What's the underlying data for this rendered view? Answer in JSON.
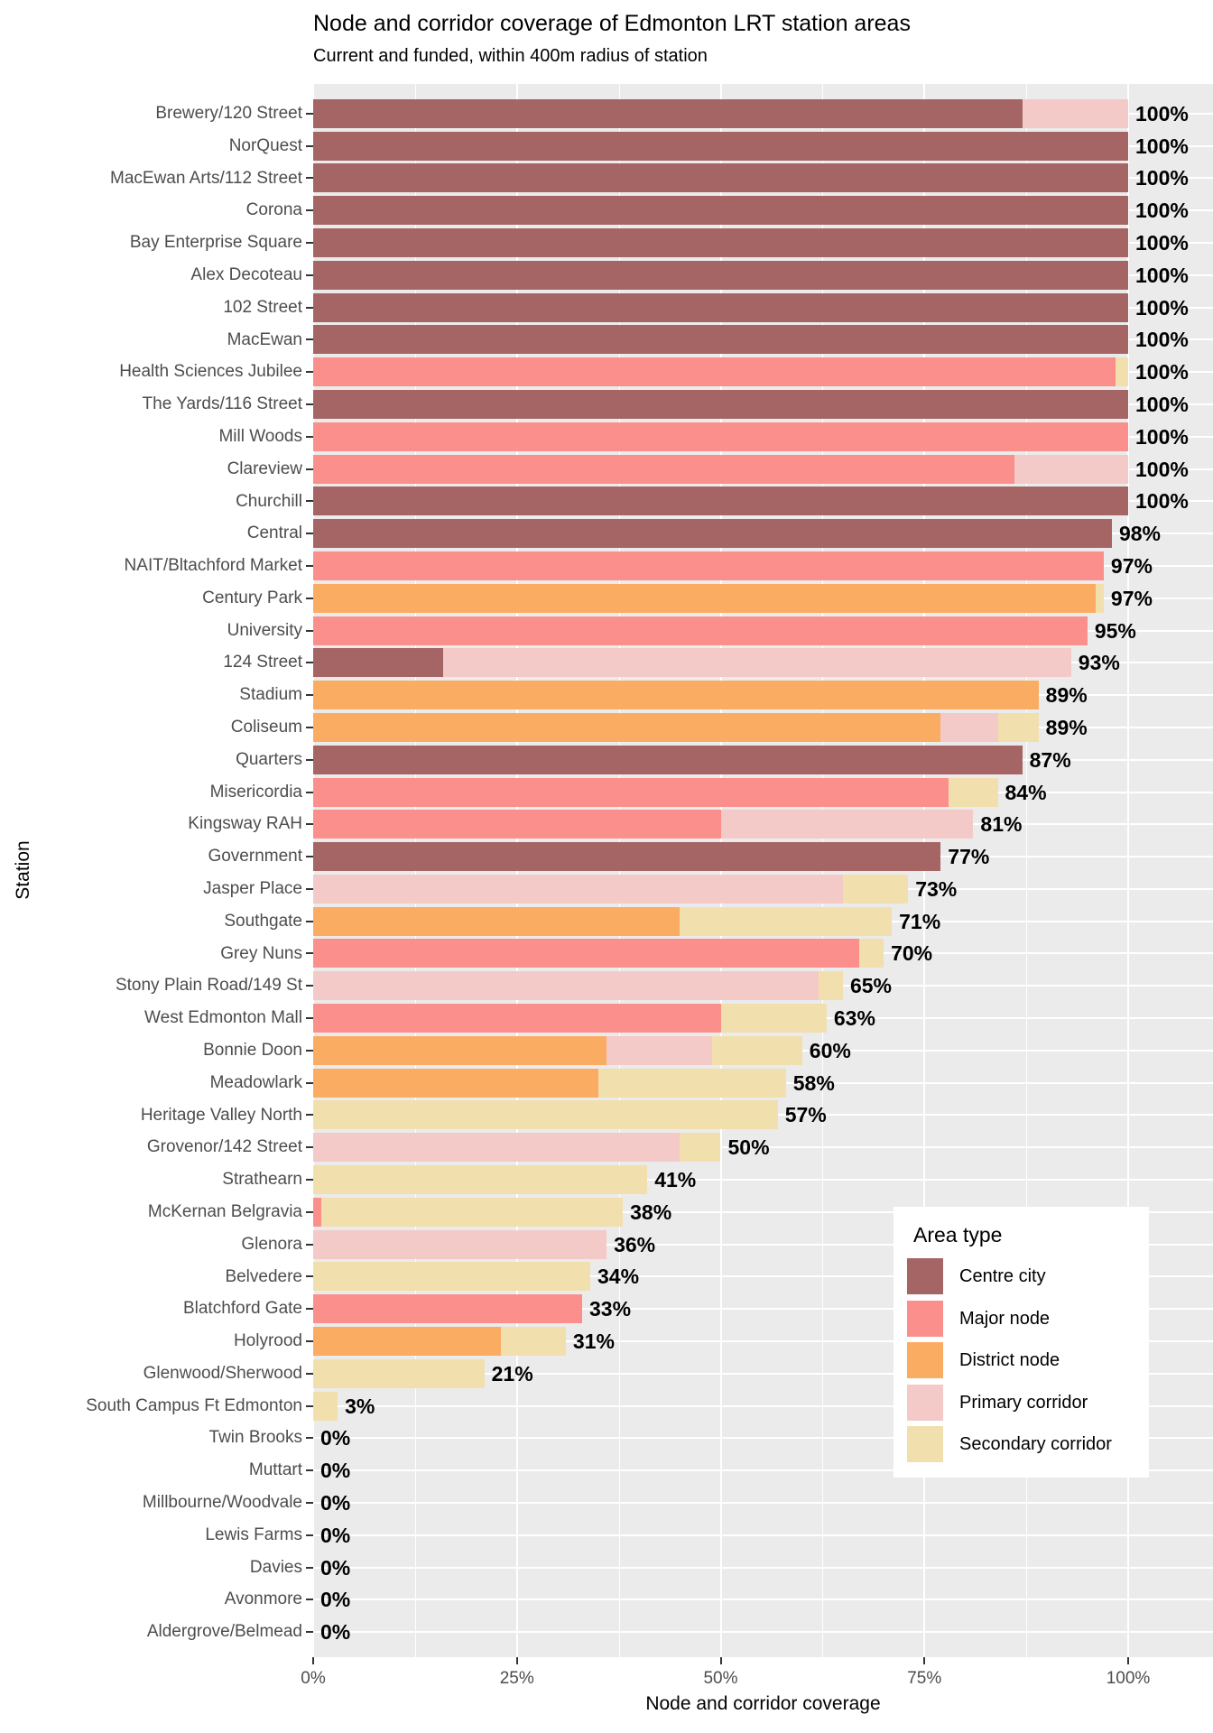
{
  "title": "Node and corridor coverage of Edmonton LRT station areas",
  "subtitle": "Current and funded, within 400m radius of station",
  "x_axis": {
    "label": "Node and corridor coverage",
    "tick_labels": [
      "0%",
      "25%",
      "50%",
      "75%",
      "100%"
    ],
    "tick_values": [
      0,
      25,
      50,
      75,
      100
    ],
    "minor_tick_values": [
      12.5,
      37.5,
      62.5,
      87.5
    ]
  },
  "y_axis": {
    "label": "Station"
  },
  "legend": {
    "title": "Area type"
  },
  "panel": {
    "background": "#EBEBEB",
    "gridline_color": "#ffffff",
    "axis_text_color": "#4D4D4D",
    "tick_color": "#333333"
  },
  "chart_data": {
    "type": "bar",
    "orientation": "horizontal",
    "stacked": true,
    "unit": "percent",
    "xlim": [
      0,
      110
    ],
    "area_types": [
      {
        "key": "centre_city",
        "label": "Centre city",
        "color": "#A56564"
      },
      {
        "key": "major_node",
        "label": "Major node",
        "color": "#FB8F8C"
      },
      {
        "key": "district_node",
        "label": "District node",
        "color": "#FBAC63"
      },
      {
        "key": "primary_corridor",
        "label": "Primary corridor",
        "color": "#F3CAC8"
      },
      {
        "key": "secondary_corridor",
        "label": "Secondary corridor",
        "color": "#F2DFAE"
      }
    ],
    "stations": [
      {
        "name": "Brewery/120 Street",
        "total_label": "100%",
        "segments": [
          {
            "type": "centre_city",
            "value": 87
          },
          {
            "type": "primary_corridor",
            "value": 13
          }
        ]
      },
      {
        "name": "NorQuest",
        "total_label": "100%",
        "segments": [
          {
            "type": "centre_city",
            "value": 100
          }
        ]
      },
      {
        "name": "MacEwan Arts/112 Street",
        "total_label": "100%",
        "segments": [
          {
            "type": "centre_city",
            "value": 100
          }
        ]
      },
      {
        "name": "Corona",
        "total_label": "100%",
        "segments": [
          {
            "type": "centre_city",
            "value": 100
          }
        ]
      },
      {
        "name": "Bay Enterprise Square",
        "total_label": "100%",
        "segments": [
          {
            "type": "centre_city",
            "value": 100
          }
        ]
      },
      {
        "name": "Alex Decoteau",
        "total_label": "100%",
        "segments": [
          {
            "type": "centre_city",
            "value": 100
          }
        ]
      },
      {
        "name": "102 Street",
        "total_label": "100%",
        "segments": [
          {
            "type": "centre_city",
            "value": 100
          }
        ]
      },
      {
        "name": "MacEwan",
        "total_label": "100%",
        "segments": [
          {
            "type": "centre_city",
            "value": 100
          }
        ]
      },
      {
        "name": "Health Sciences Jubilee",
        "total_label": "100%",
        "segments": [
          {
            "type": "major_node",
            "value": 98.5
          },
          {
            "type": "secondary_corridor",
            "value": 1.5
          }
        ]
      },
      {
        "name": "The Yards/116 Street",
        "total_label": "100%",
        "segments": [
          {
            "type": "centre_city",
            "value": 100
          }
        ]
      },
      {
        "name": "Mill Woods",
        "total_label": "100%",
        "segments": [
          {
            "type": "major_node",
            "value": 100
          }
        ]
      },
      {
        "name": "Clareview",
        "total_label": "100%",
        "segments": [
          {
            "type": "major_node",
            "value": 86
          },
          {
            "type": "primary_corridor",
            "value": 14
          }
        ]
      },
      {
        "name": "Churchill",
        "total_label": "100%",
        "segments": [
          {
            "type": "centre_city",
            "value": 100
          }
        ]
      },
      {
        "name": "Central",
        "total_label": "98%",
        "segments": [
          {
            "type": "centre_city",
            "value": 98
          }
        ]
      },
      {
        "name": "NAIT/Bltachford Market",
        "total_label": "97%",
        "segments": [
          {
            "type": "major_node",
            "value": 97
          }
        ]
      },
      {
        "name": "Century Park",
        "total_label": "97%",
        "segments": [
          {
            "type": "district_node",
            "value": 96
          },
          {
            "type": "secondary_corridor",
            "value": 1
          }
        ]
      },
      {
        "name": "University",
        "total_label": "95%",
        "segments": [
          {
            "type": "major_node",
            "value": 95
          }
        ]
      },
      {
        "name": "124 Street",
        "total_label": "93%",
        "segments": [
          {
            "type": "centre_city",
            "value": 16
          },
          {
            "type": "primary_corridor",
            "value": 77
          }
        ]
      },
      {
        "name": "Stadium",
        "total_label": "89%",
        "segments": [
          {
            "type": "district_node",
            "value": 89
          }
        ]
      },
      {
        "name": "Coliseum",
        "total_label": "89%",
        "segments": [
          {
            "type": "district_node",
            "value": 77
          },
          {
            "type": "primary_corridor",
            "value": 7
          },
          {
            "type": "secondary_corridor",
            "value": 5
          }
        ]
      },
      {
        "name": "Quarters",
        "total_label": "87%",
        "segments": [
          {
            "type": "centre_city",
            "value": 87
          }
        ]
      },
      {
        "name": "Misericordia",
        "total_label": "84%",
        "segments": [
          {
            "type": "major_node",
            "value": 78
          },
          {
            "type": "secondary_corridor",
            "value": 6
          }
        ]
      },
      {
        "name": "Kingsway RAH",
        "total_label": "81%",
        "segments": [
          {
            "type": "major_node",
            "value": 50
          },
          {
            "type": "primary_corridor",
            "value": 31
          }
        ]
      },
      {
        "name": "Government",
        "total_label": "77%",
        "segments": [
          {
            "type": "centre_city",
            "value": 77
          }
        ]
      },
      {
        "name": "Jasper Place",
        "total_label": "73%",
        "segments": [
          {
            "type": "primary_corridor",
            "value": 65
          },
          {
            "type": "secondary_corridor",
            "value": 8
          }
        ]
      },
      {
        "name": "Southgate",
        "total_label": "71%",
        "segments": [
          {
            "type": "district_node",
            "value": 45
          },
          {
            "type": "secondary_corridor",
            "value": 26
          }
        ]
      },
      {
        "name": "Grey Nuns",
        "total_label": "70%",
        "segments": [
          {
            "type": "major_node",
            "value": 67
          },
          {
            "type": "secondary_corridor",
            "value": 3
          }
        ]
      },
      {
        "name": "Stony Plain Road/149 St",
        "total_label": "65%",
        "segments": [
          {
            "type": "primary_corridor",
            "value": 62
          },
          {
            "type": "secondary_corridor",
            "value": 3
          }
        ]
      },
      {
        "name": "West Edmonton Mall",
        "total_label": "63%",
        "segments": [
          {
            "type": "major_node",
            "value": 50
          },
          {
            "type": "secondary_corridor",
            "value": 13
          }
        ]
      },
      {
        "name": "Bonnie Doon",
        "total_label": "60%",
        "segments": [
          {
            "type": "district_node",
            "value": 36
          },
          {
            "type": "primary_corridor",
            "value": 13
          },
          {
            "type": "secondary_corridor",
            "value": 11
          }
        ]
      },
      {
        "name": "Meadowlark",
        "total_label": "58%",
        "segments": [
          {
            "type": "district_node",
            "value": 35
          },
          {
            "type": "secondary_corridor",
            "value": 23
          }
        ]
      },
      {
        "name": "Heritage Valley North",
        "total_label": "57%",
        "segments": [
          {
            "type": "secondary_corridor",
            "value": 57
          }
        ]
      },
      {
        "name": "Grovenor/142 Street",
        "total_label": "50%",
        "segments": [
          {
            "type": "primary_corridor",
            "value": 45
          },
          {
            "type": "secondary_corridor",
            "value": 5
          }
        ]
      },
      {
        "name": "Strathearn",
        "total_label": "41%",
        "segments": [
          {
            "type": "secondary_corridor",
            "value": 41
          }
        ]
      },
      {
        "name": "McKernan Belgravia",
        "total_label": "38%",
        "segments": [
          {
            "type": "major_node",
            "value": 1
          },
          {
            "type": "secondary_corridor",
            "value": 37
          }
        ]
      },
      {
        "name": "Glenora",
        "total_label": "36%",
        "segments": [
          {
            "type": "primary_corridor",
            "value": 36
          }
        ]
      },
      {
        "name": "Belvedere",
        "total_label": "34%",
        "segments": [
          {
            "type": "secondary_corridor",
            "value": 34
          }
        ]
      },
      {
        "name": "Blatchford Gate",
        "total_label": "33%",
        "segments": [
          {
            "type": "major_node",
            "value": 33
          }
        ]
      },
      {
        "name": "Holyrood",
        "total_label": "31%",
        "segments": [
          {
            "type": "district_node",
            "value": 23
          },
          {
            "type": "secondary_corridor",
            "value": 8
          }
        ]
      },
      {
        "name": "Glenwood/Sherwood",
        "total_label": "21%",
        "segments": [
          {
            "type": "secondary_corridor",
            "value": 21
          }
        ]
      },
      {
        "name": "South Campus Ft Edmonton",
        "total_label": "3%",
        "segments": [
          {
            "type": "secondary_corridor",
            "value": 3
          }
        ]
      },
      {
        "name": "Twin Brooks",
        "total_label": "0%",
        "segments": []
      },
      {
        "name": "Muttart",
        "total_label": "0%",
        "segments": []
      },
      {
        "name": "Millbourne/Woodvale",
        "total_label": "0%",
        "segments": []
      },
      {
        "name": "Lewis Farms",
        "total_label": "0%",
        "segments": []
      },
      {
        "name": "Davies",
        "total_label": "0%",
        "segments": []
      },
      {
        "name": "Avonmore",
        "total_label": "0%",
        "segments": []
      },
      {
        "name": "Aldergrove/Belmead",
        "total_label": "0%",
        "segments": []
      }
    ]
  }
}
